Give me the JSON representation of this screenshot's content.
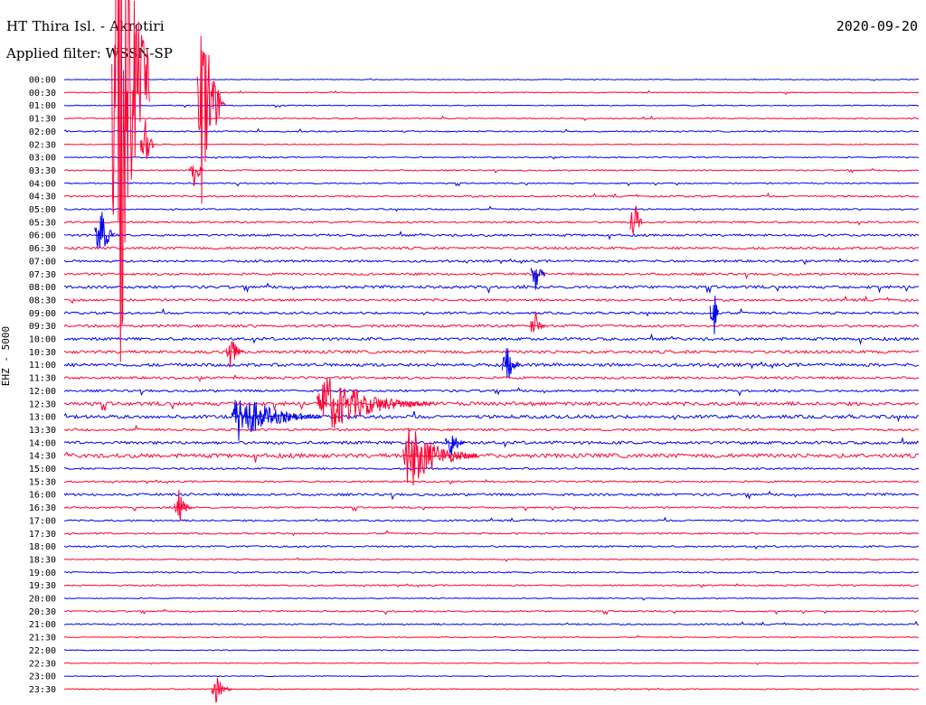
{
  "header": {
    "station": "HT Thira Isl. - Akrotiri",
    "filter": "Applied filter: WSSN-SP",
    "date": "2020-09-20",
    "channel": "EHZ - 5000"
  },
  "colors": {
    "blue": "#0000ee",
    "red": "#ff0033",
    "background": "#ffffff"
  },
  "chart_data": {
    "type": "line",
    "title": "HT Thira Isl. - Akrotiri",
    "ylabel": "EHZ - 5000",
    "x_range": [
      0,
      30
    ],
    "grid": false,
    "legend": "none",
    "rows": [
      {
        "time": "00:00",
        "color": "blue",
        "amp": 0.4
      },
      {
        "time": "00:30",
        "color": "red",
        "amp": 0.5
      },
      {
        "time": "01:00",
        "color": "blue",
        "amp": 0.5
      },
      {
        "time": "01:30",
        "color": "red",
        "amp": 0.6
      },
      {
        "time": "02:00",
        "color": "blue",
        "amp": 0.7
      },
      {
        "time": "02:30",
        "color": "red",
        "amp": 0.5
      },
      {
        "time": "03:00",
        "color": "blue",
        "amp": 0.6
      },
      {
        "time": "03:30",
        "color": "red",
        "amp": 0.7
      },
      {
        "time": "04:00",
        "color": "blue",
        "amp": 0.7
      },
      {
        "time": "04:30",
        "color": "red",
        "amp": 0.9
      },
      {
        "time": "05:00",
        "color": "blue",
        "amp": 0.8
      },
      {
        "time": "05:30",
        "color": "red",
        "amp": 1.0
      },
      {
        "time": "06:00",
        "color": "blue",
        "amp": 1.2
      },
      {
        "time": "06:30",
        "color": "red",
        "amp": 1.3
      },
      {
        "time": "07:00",
        "color": "blue",
        "amp": 1.2
      },
      {
        "time": "07:30",
        "color": "red",
        "amp": 1.2
      },
      {
        "time": "08:00",
        "color": "blue",
        "amp": 1.5
      },
      {
        "time": "08:30",
        "color": "red",
        "amp": 1.3
      },
      {
        "time": "09:00",
        "color": "blue",
        "amp": 1.2
      },
      {
        "time": "09:30",
        "color": "red",
        "amp": 1.4
      },
      {
        "time": "10:00",
        "color": "blue",
        "amp": 1.5
      },
      {
        "time": "10:30",
        "color": "red",
        "amp": 1.6
      },
      {
        "time": "11:00",
        "color": "blue",
        "amp": 1.7
      },
      {
        "time": "11:30",
        "color": "red",
        "amp": 1.3
      },
      {
        "time": "12:00",
        "color": "blue",
        "amp": 1.2
      },
      {
        "time": "12:30",
        "color": "red",
        "amp": 2.0
      },
      {
        "time": "13:00",
        "color": "blue",
        "amp": 1.8
      },
      {
        "time": "13:30",
        "color": "red",
        "amp": 1.2
      },
      {
        "time": "14:00",
        "color": "blue",
        "amp": 1.6
      },
      {
        "time": "14:30",
        "color": "red",
        "amp": 2.2
      },
      {
        "time": "15:00",
        "color": "blue",
        "amp": 1.0
      },
      {
        "time": "15:30",
        "color": "red",
        "amp": 0.9
      },
      {
        "time": "16:00",
        "color": "blue",
        "amp": 1.3
      },
      {
        "time": "16:30",
        "color": "red",
        "amp": 0.9
      },
      {
        "time": "17:00",
        "color": "blue",
        "amp": 0.9
      },
      {
        "time": "17:30",
        "color": "red",
        "amp": 0.8
      },
      {
        "time": "18:00",
        "color": "blue",
        "amp": 0.9
      },
      {
        "time": "18:30",
        "color": "red",
        "amp": 0.6
      },
      {
        "time": "19:00",
        "color": "blue",
        "amp": 0.8
      },
      {
        "time": "19:30",
        "color": "red",
        "amp": 0.8
      },
      {
        "time": "20:00",
        "color": "blue",
        "amp": 0.5
      },
      {
        "time": "20:30",
        "color": "red",
        "amp": 0.8
      },
      {
        "time": "21:00",
        "color": "blue",
        "amp": 0.8
      },
      {
        "time": "21:30",
        "color": "red",
        "amp": 0.5
      },
      {
        "time": "22:00",
        "color": "blue",
        "amp": 0.5
      },
      {
        "time": "22:30",
        "color": "red",
        "amp": 0.4
      },
      {
        "time": "23:00",
        "color": "blue",
        "amp": 0.4
      },
      {
        "time": "23:30",
        "color": "red",
        "amp": 0.6
      }
    ],
    "events": [
      {
        "row": 0,
        "minute": 1.8,
        "amp": 100,
        "decay": 1.2,
        "color": "red"
      },
      {
        "row": 2,
        "minute": 4.8,
        "amp": 30,
        "decay": 0.9,
        "color": "red"
      },
      {
        "row": 5,
        "minute": 2.8,
        "amp": 8,
        "decay": 0.4,
        "color": "red"
      },
      {
        "row": 7,
        "minute": 4.5,
        "amp": 7,
        "decay": 0.4,
        "color": "red"
      },
      {
        "row": 11,
        "minute": 20.0,
        "amp": 9,
        "decay": 0.3,
        "color": "red"
      },
      {
        "row": 12,
        "minute": 1.2,
        "amp": 10,
        "decay": 0.6,
        "color": "blue"
      },
      {
        "row": 15,
        "minute": 16.5,
        "amp": 6,
        "decay": 0.4,
        "color": "blue"
      },
      {
        "row": 18,
        "minute": 22.8,
        "amp": 9,
        "decay": 0.2,
        "color": "blue"
      },
      {
        "row": 19,
        "minute": 16.5,
        "amp": 5,
        "decay": 0.4,
        "color": "red"
      },
      {
        "row": 21,
        "minute": 5.8,
        "amp": 6,
        "decay": 0.5,
        "color": "red"
      },
      {
        "row": 22,
        "minute": 15.5,
        "amp": 6,
        "decay": 0.5,
        "color": "blue"
      },
      {
        "row": 25,
        "minute": 9.0,
        "amp": 8,
        "decay": 4.0,
        "color": "red"
      },
      {
        "row": 26,
        "minute": 6.0,
        "amp": 7,
        "decay": 3.0,
        "color": "blue"
      },
      {
        "row": 29,
        "minute": 12.0,
        "amp": 9,
        "decay": 2.5,
        "color": "red"
      },
      {
        "row": 28,
        "minute": 13.5,
        "amp": 5,
        "decay": 0.6,
        "color": "blue"
      },
      {
        "row": 33,
        "minute": 4.0,
        "amp": 5,
        "decay": 0.5,
        "color": "red"
      },
      {
        "row": 47,
        "minute": 5.3,
        "amp": 4,
        "decay": 0.6,
        "color": "red"
      }
    ]
  }
}
